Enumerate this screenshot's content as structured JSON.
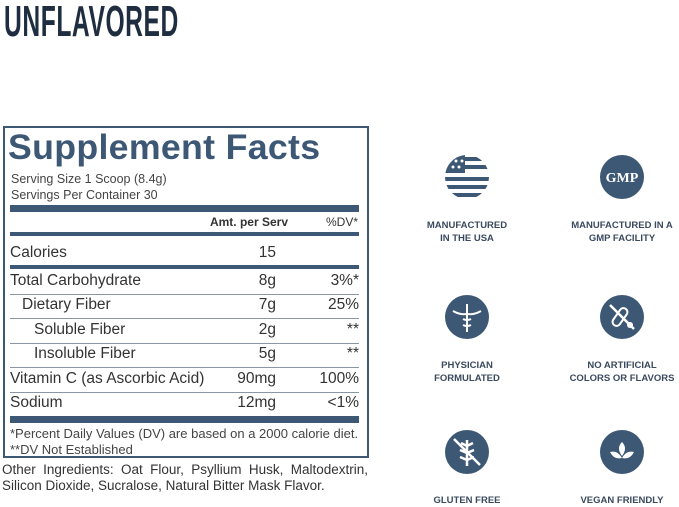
{
  "flavor": "UNFLAVORED",
  "facts": {
    "title": "Supplement Facts",
    "serving_size": "Serving Size 1 Scoop (8.4g)",
    "servings_per_container": "Servings Per Container 30",
    "col_amount": "Amt. per Serv",
    "col_dv": "%DV*",
    "rows": [
      {
        "name": "Calories",
        "amount": "15",
        "dv": ""
      },
      {
        "name": "Total Carbohydrate",
        "amount": "8g",
        "dv": "3%*"
      },
      {
        "name": "Dietary Fiber",
        "amount": "7g",
        "dv": "25%"
      },
      {
        "name": "Soluble Fiber",
        "amount": "2g",
        "dv": "**"
      },
      {
        "name": "Insoluble Fiber",
        "amount": "5g",
        "dv": "**"
      },
      {
        "name": "Vitamin C (as Ascorbic Acid)",
        "amount": "90mg",
        "dv": "100%"
      },
      {
        "name": "Sodium",
        "amount": "12mg",
        "dv": "<1%"
      }
    ],
    "footnote1": "*Percent Daily Values (DV) are based on a 2000 calorie diet.",
    "footnote2": "**DV Not Established"
  },
  "ingredients_line1": "Other Ingredients: Oat Flour, Psyllium Husk, Maltodextrin,",
  "ingredients_line2": "Silicon Dioxide, Sucralose, Natural Bitter Mask Flavor.",
  "features": [
    {
      "icon": "usa-flag-icon",
      "l1": "MANUFACTURED",
      "l2": "IN THE USA"
    },
    {
      "icon": "gmp-icon",
      "text": "GMP",
      "l1": "MANUFACTURED IN A",
      "l2": "GMP FACILITY"
    },
    {
      "icon": "caduceus-icon",
      "l1": "PHYSICIAN",
      "l2": "FORMULATED"
    },
    {
      "icon": "no-artificial-icon",
      "l1": "NO ARTIFICIAL",
      "l2": "COLORS OR FLAVORS"
    },
    {
      "icon": "gluten-free-icon",
      "l1": "GLUTEN FREE",
      "l2": ""
    },
    {
      "icon": "vegan-leaf-icon",
      "l1": "VEGAN FRIENDLY",
      "l2": ""
    }
  ],
  "colors": {
    "navy": "#3d5875",
    "heading": "#1f2d40"
  }
}
